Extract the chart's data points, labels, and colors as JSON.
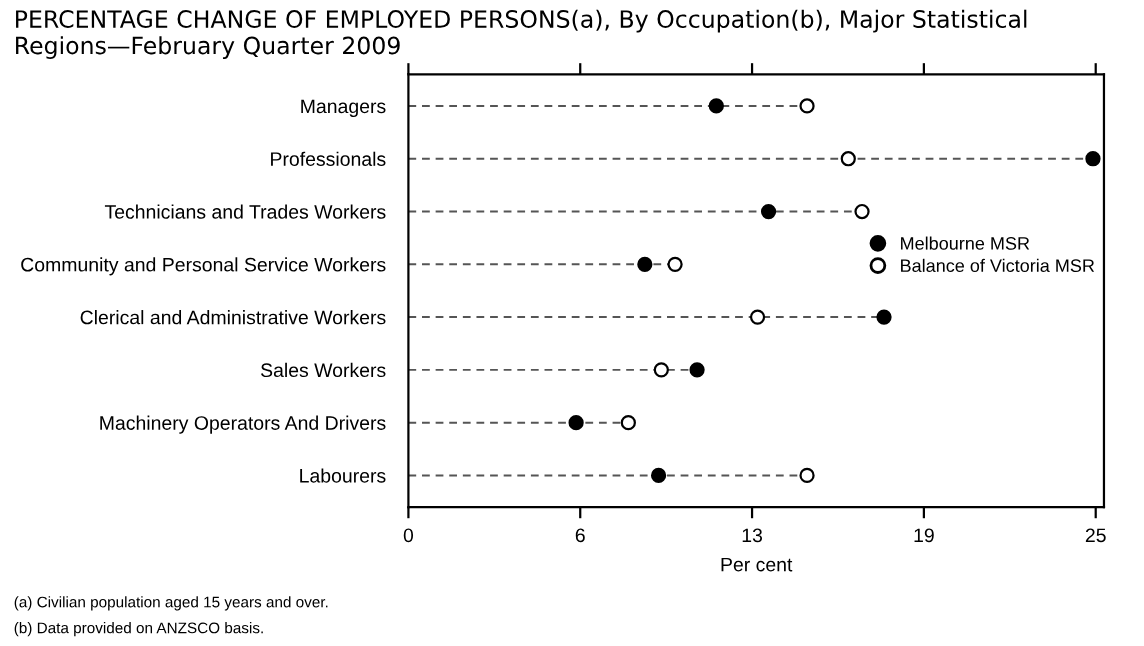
{
  "chart_data": {
    "type": "scatter",
    "orientation": "horizontal",
    "title": "PERCENTAGE CHANGE OF EMPLOYED PERSONS(a), By Occupation(b), Major Statistical Regions—February Quarter 2009",
    "categories": [
      "Managers",
      "Professionals",
      "Technicians and Trades Workers",
      "Community and Personal Service Workers",
      "Clerical and Administrative Workers",
      "Sales Workers",
      "Machinery Operators And Drivers",
      "Labourers"
    ],
    "series": [
      {
        "name": "Melbourne MSR",
        "color": "#000000",
        "values": [
          11.2,
          24.9,
          13.1,
          8.6,
          17.3,
          10.5,
          6.1,
          9.1
        ]
      },
      {
        "name": "Balance of Victoria MSR",
        "color": "#ffffff",
        "values": [
          14.5,
          16.0,
          16.5,
          9.7,
          12.7,
          9.2,
          8.0,
          14.5
        ]
      }
    ],
    "xlabel": "Per cent",
    "xlim": [
      0,
      25.3
    ],
    "xticks": [
      0,
      {
        "value": 6.25,
        "label": "6"
      },
      {
        "value": 12.5,
        "label": "13"
      },
      {
        "value": 18.75,
        "label": "19"
      },
      25
    ],
    "marker": "circle",
    "line_style": "dashed",
    "legend": "right",
    "grid": false,
    "annotations": [
      "(a) Civilian population aged 15 years and over.",
      "(b) Data provided on ANZSCO basis."
    ]
  }
}
